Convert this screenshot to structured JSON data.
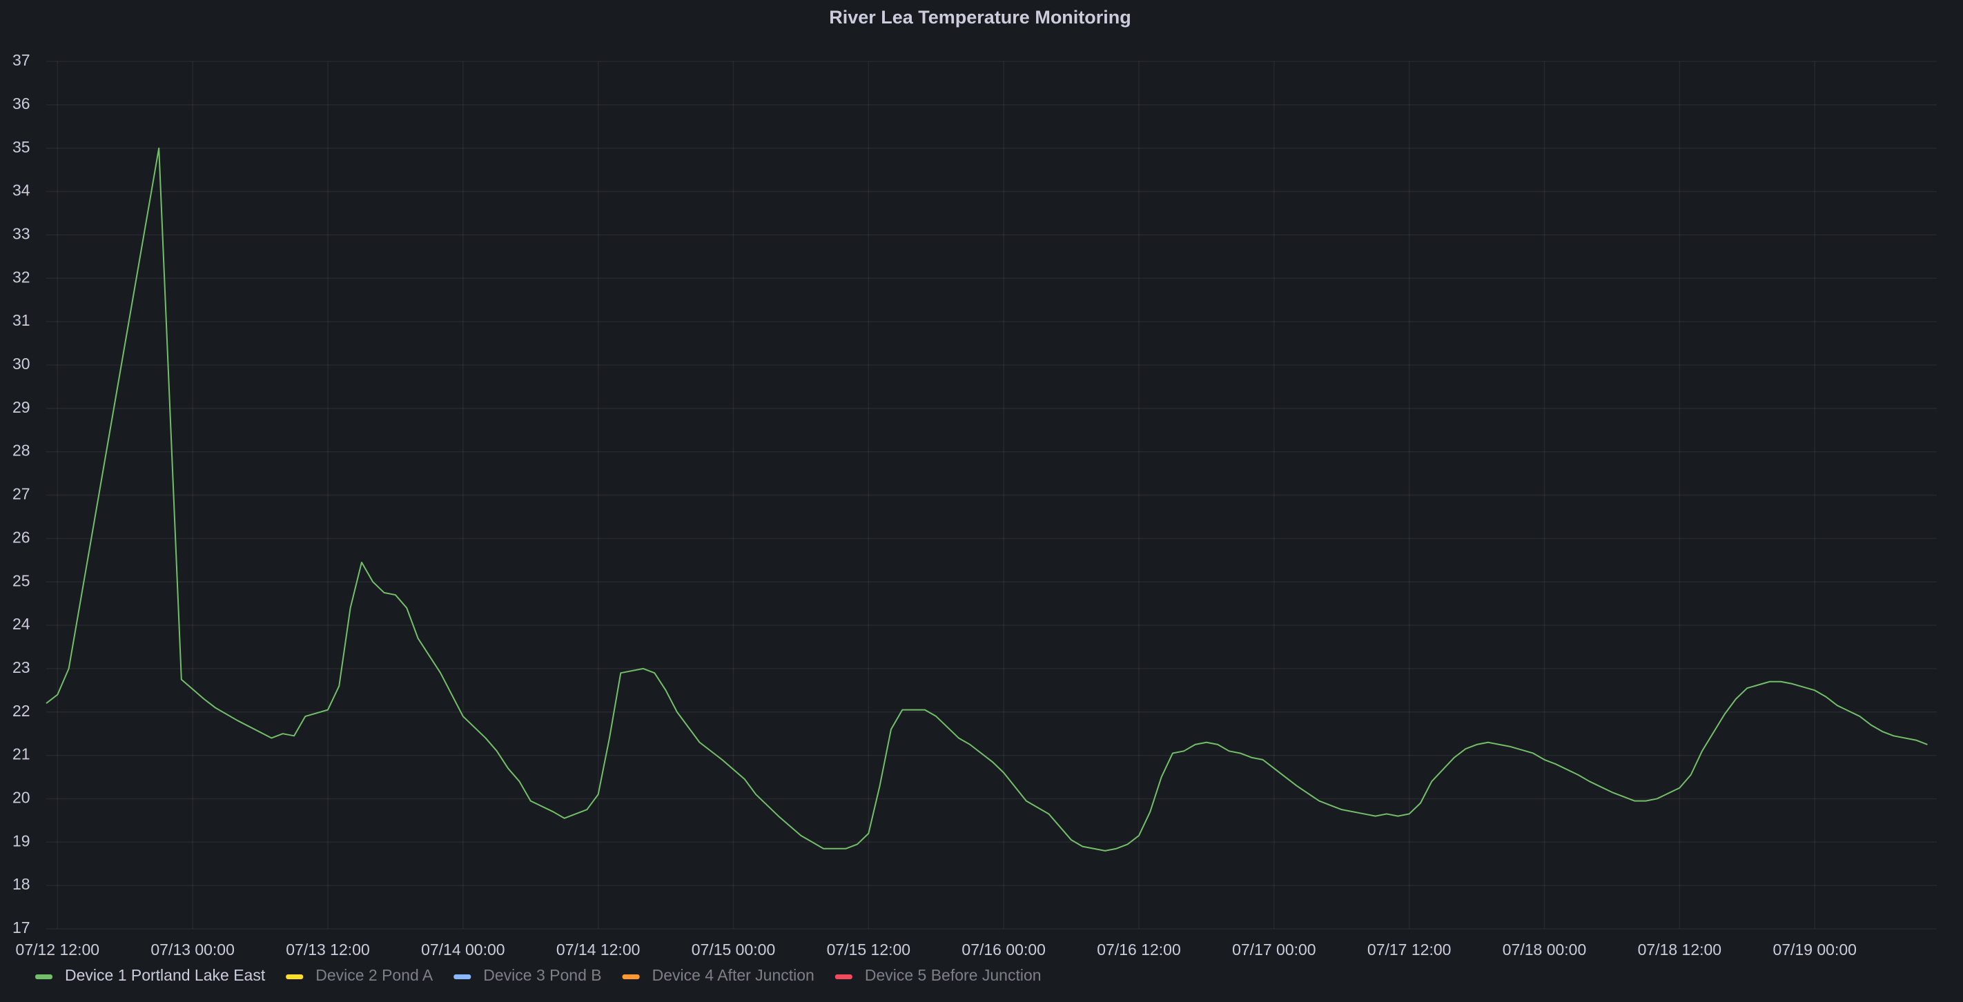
{
  "chart_data": {
    "type": "line",
    "title": "River Lea Temperature Monitoring",
    "x": [
      "07/12 11:00",
      "07/12 12:00",
      "07/12 13:00",
      "07/12 21:00",
      "07/12 23:00",
      "07/13 01:00",
      "07/13 02:00",
      "07/13 04:00",
      "07/13 07:00",
      "07/13 08:00",
      "07/13 09:00",
      "07/13 10:00",
      "07/13 12:00",
      "07/13 13:00",
      "07/13 14:00",
      "07/13 15:00",
      "07/13 16:00",
      "07/13 17:00",
      "07/13 18:00",
      "07/13 19:00",
      "07/13 20:00",
      "07/13 21:00",
      "07/13 22:00",
      "07/14 00:00",
      "07/14 02:00",
      "07/14 03:00",
      "07/14 04:00",
      "07/14 05:00",
      "07/14 06:00",
      "07/14 08:00",
      "07/14 09:00",
      "07/14 11:00",
      "07/14 12:00",
      "07/14 13:00",
      "07/14 14:00",
      "07/14 16:00",
      "07/14 17:00",
      "07/14 18:00",
      "07/14 19:00",
      "07/14 21:00",
      "07/14 23:00",
      "07/15 01:00",
      "07/15 02:00",
      "07/15 04:00",
      "07/15 06:00",
      "07/15 07:00",
      "07/15 08:00",
      "07/15 10:00",
      "07/15 11:00",
      "07/15 12:00",
      "07/15 13:00",
      "07/15 14:00",
      "07/15 15:00",
      "07/15 17:00",
      "07/15 18:00",
      "07/15 20:00",
      "07/15 21:00",
      "07/15 23:00",
      "07/16 00:00",
      "07/16 02:00",
      "07/16 04:00",
      "07/16 06:00",
      "07/16 07:00",
      "07/16 09:00",
      "07/16 10:00",
      "07/16 11:00",
      "07/16 12:00",
      "07/16 13:00",
      "07/16 14:00",
      "07/16 15:00",
      "07/16 16:00",
      "07/16 17:00",
      "07/16 18:00",
      "07/16 19:00",
      "07/16 20:00",
      "07/16 21:00",
      "07/16 22:00",
      "07/16 23:00",
      "07/17 00:00",
      "07/17 02:00",
      "07/17 04:00",
      "07/17 05:00",
      "07/17 06:00",
      "07/17 08:00",
      "07/17 09:00",
      "07/17 10:00",
      "07/17 11:00",
      "07/17 12:00",
      "07/17 13:00",
      "07/17 14:00",
      "07/17 16:00",
      "07/17 17:00",
      "07/17 18:00",
      "07/17 19:00",
      "07/17 21:00",
      "07/17 23:00",
      "07/18 00:00",
      "07/18 01:00",
      "07/18 03:00",
      "07/18 04:00",
      "07/18 06:00",
      "07/18 08:00",
      "07/18 09:00",
      "07/18 10:00",
      "07/18 12:00",
      "07/18 13:00",
      "07/18 14:00",
      "07/18 16:00",
      "07/18 17:00",
      "07/18 18:00",
      "07/18 20:00",
      "07/18 21:00",
      "07/18 22:00",
      "07/19 00:00",
      "07/19 01:00",
      "07/19 02:00",
      "07/19 04:00",
      "07/19 05:00",
      "07/19 06:00",
      "07/19 07:00",
      "07/19 09:00",
      "07/19 10:00"
    ],
    "series": [
      {
        "name": "Device 1 Portland Lake East",
        "color": "#73bf69",
        "values": [
          22.2,
          22.4,
          23.0,
          35.0,
          22.75,
          22.3,
          22.1,
          21.8,
          21.4,
          21.5,
          21.45,
          21.9,
          22.05,
          22.6,
          24.4,
          25.45,
          25.0,
          24.75,
          24.7,
          24.4,
          23.7,
          23.3,
          22.9,
          21.9,
          21.4,
          21.1,
          20.7,
          20.4,
          19.95,
          19.7,
          19.55,
          19.75,
          20.1,
          21.4,
          22.9,
          23.0,
          22.9,
          22.5,
          22.0,
          21.3,
          20.9,
          20.45,
          20.1,
          19.6,
          19.15,
          19.0,
          18.85,
          18.85,
          18.95,
          19.2,
          20.3,
          21.6,
          22.05,
          22.05,
          21.9,
          21.4,
          21.25,
          20.85,
          20.6,
          19.95,
          19.65,
          19.05,
          18.9,
          18.8,
          18.85,
          18.95,
          19.15,
          19.7,
          20.5,
          21.05,
          21.1,
          21.25,
          21.3,
          21.25,
          21.1,
          21.05,
          20.95,
          20.9,
          20.7,
          20.3,
          19.95,
          19.85,
          19.75,
          19.65,
          19.6,
          19.65,
          19.6,
          19.65,
          19.9,
          20.4,
          20.95,
          21.15,
          21.25,
          21.3,
          21.2,
          21.05,
          20.9,
          20.8,
          20.55,
          20.4,
          20.15,
          19.95,
          19.95,
          20.0,
          20.25,
          20.55,
          21.1,
          21.95,
          22.3,
          22.55,
          22.7,
          22.7,
          22.65,
          22.5,
          22.35,
          22.15,
          21.9,
          21.7,
          21.55,
          21.45,
          21.35,
          21.25
        ]
      },
      {
        "name": "Device 2 Pond A",
        "color": "#fade2a",
        "hidden": true
      },
      {
        "name": "Device 3 Pond B",
        "color": "#8ab8ff",
        "hidden": true
      },
      {
        "name": "Device 4 After Junction",
        "color": "#ff9830",
        "hidden": true
      },
      {
        "name": "Device 5 Before Junction",
        "color": "#f2495c",
        "hidden": true
      }
    ],
    "xlim": [
      "07/12 11:00",
      "07/19 10:50"
    ],
    "xticks": [
      "07/12 12:00",
      "07/13 00:00",
      "07/13 12:00",
      "07/14 00:00",
      "07/14 12:00",
      "07/15 00:00",
      "07/15 12:00",
      "07/16 00:00",
      "07/16 12:00",
      "07/17 00:00",
      "07/17 12:00",
      "07/18 00:00",
      "07/18 12:00",
      "07/19 00:00"
    ],
    "ylim": [
      17,
      37
    ],
    "yticks": [
      17,
      18,
      19,
      20,
      21,
      22,
      23,
      24,
      25,
      26,
      27,
      28,
      29,
      30,
      31,
      32,
      33,
      34,
      35,
      36,
      37
    ],
    "grid": true,
    "legend": "bottom"
  }
}
